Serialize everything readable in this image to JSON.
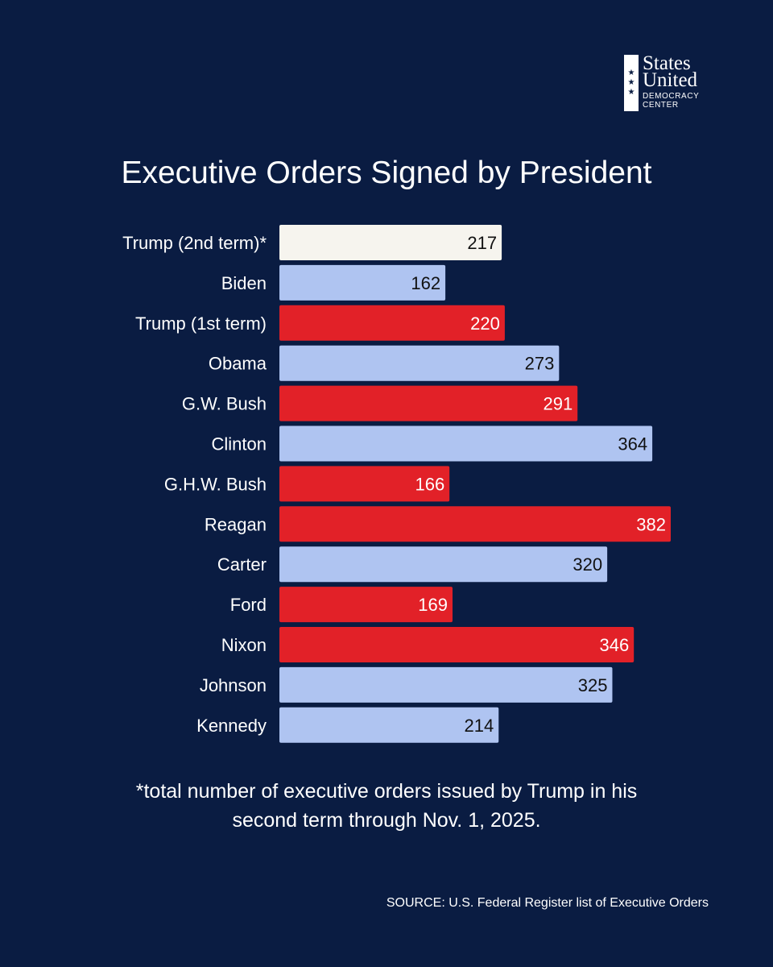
{
  "logo": {
    "stars": [
      "★",
      "★",
      "★"
    ],
    "line1": "States",
    "line2": "United",
    "line3": "DEMOCRACY",
    "line4": "CENTER"
  },
  "chart_data": {
    "type": "bar",
    "orientation": "horizontal",
    "title": "Executive Orders Signed by President",
    "categories": [
      "Trump (2nd term)*",
      "Biden",
      "Trump (1st term)",
      "Obama",
      "G.W. Bush",
      "Clinton",
      "G.H.W. Bush",
      "Reagan",
      "Carter",
      "Ford",
      "Nixon",
      "Johnson",
      "Kennedy"
    ],
    "values": [
      217,
      162,
      220,
      273,
      291,
      364,
      166,
      382,
      320,
      169,
      346,
      325,
      214
    ],
    "party": [
      "current",
      "D",
      "R",
      "D",
      "R",
      "D",
      "R",
      "R",
      "D",
      "R",
      "R",
      "D",
      "D"
    ],
    "colors": {
      "current": "#f6f4ee",
      "D": "#afc4f1",
      "R": "#e22128",
      "label_on_light": "#111111",
      "label_on_red": "#ffffff"
    },
    "xlim": [
      0,
      382
    ],
    "xlabel": "",
    "ylabel": "",
    "grid": false,
    "legend": "none"
  },
  "footnote": {
    "line1": "*total number of executive orders issued by Trump in his",
    "line2": "second term through Nov. 1, 2025."
  },
  "source": "SOURCE: U.S. Federal Register list of Executive Orders"
}
